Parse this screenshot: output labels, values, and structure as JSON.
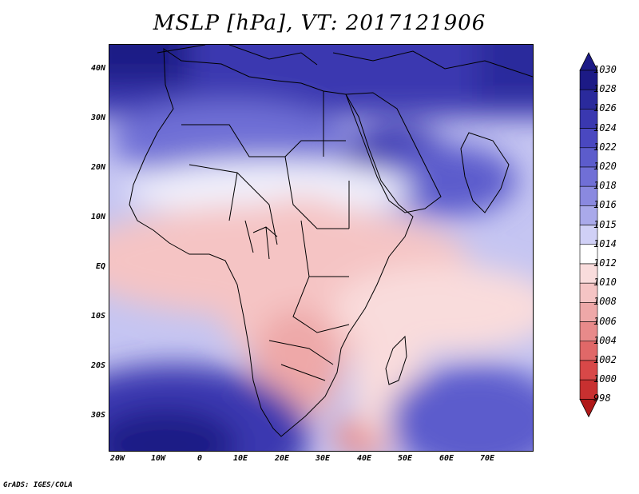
{
  "title": "MSLP [hPa], VT: 2017121906",
  "footer": "GrADS: IGES/COLA",
  "lat_axis": {
    "ticks": [
      {
        "label": "40N",
        "value": 40
      },
      {
        "label": "30N",
        "value": 30
      },
      {
        "label": "20N",
        "value": 20
      },
      {
        "label": "10N",
        "value": 10
      },
      {
        "label": "EQ",
        "value": 0
      },
      {
        "label": "10S",
        "value": -10
      },
      {
        "label": "20S",
        "value": -20
      },
      {
        "label": "30S",
        "value": -30
      }
    ]
  },
  "lon_axis": {
    "ticks": [
      {
        "label": "20W",
        "value": -20
      },
      {
        "label": "10W",
        "value": -10
      },
      {
        "label": "0",
        "value": 0
      },
      {
        "label": "10E",
        "value": 10
      },
      {
        "label": "20E",
        "value": 20
      },
      {
        "label": "30E",
        "value": 30
      },
      {
        "label": "40E",
        "value": 40
      },
      {
        "label": "50E",
        "value": 50
      },
      {
        "label": "60E",
        "value": 60
      },
      {
        "label": "70E",
        "value": 70
      }
    ]
  },
  "domain": {
    "lon_min": -23,
    "lon_max": 80,
    "lat_min": -37,
    "lat_max": 45
  },
  "colorbar": {
    "levels": [
      "1030",
      "1028",
      "1026",
      "1024",
      "1022",
      "1020",
      "1018",
      "1016",
      "1015",
      "1014",
      "1012",
      "1010",
      "1008",
      "1006",
      "1004",
      "1002",
      "1000",
      "998"
    ],
    "colors": [
      "#1c1a86",
      "#2a2a9c",
      "#3a38b0",
      "#4a48c0",
      "#5c5ccc",
      "#706fd6",
      "#8a89e0",
      "#a9a9ea",
      "#d0d0f6",
      "#ffffff",
      "#f9dcdc",
      "#f5c4c4",
      "#eea8a8",
      "#e88a8a",
      "#e06868",
      "#d84848",
      "#c83030",
      "#b01818"
    ]
  },
  "regions": [
    {
      "name": "north-high",
      "value": 1026
    },
    {
      "name": "arabia-high",
      "value": 1024
    },
    {
      "name": "sahara-low",
      "value": 1012
    },
    {
      "name": "kalahari-low",
      "value": 1008
    },
    {
      "name": "south-atlantic-high",
      "value": 1028
    },
    {
      "name": "south-indian-high",
      "value": 1020
    },
    {
      "name": "mozambique-channel-low",
      "value": 1006
    }
  ]
}
